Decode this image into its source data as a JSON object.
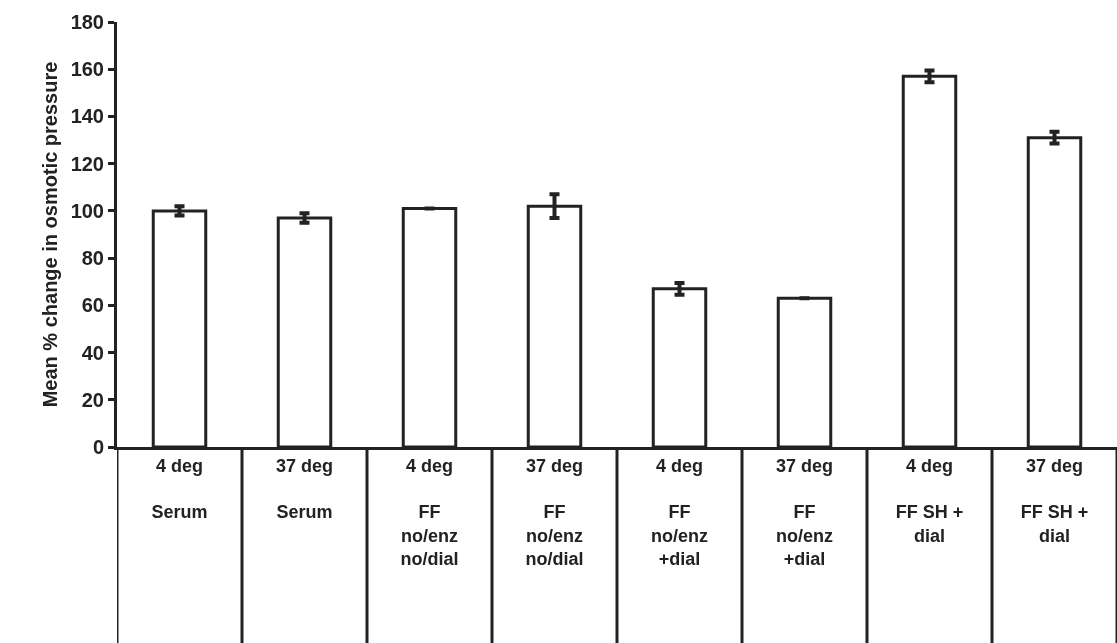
{
  "chart_data": {
    "type": "bar",
    "ylabel": "Mean % change in osmotic pressure",
    "categories": [
      "4 deg\n\nSerum",
      "37 deg\n\nSerum",
      "4 deg\n\nFF\nno/enz\nno/dial",
      "37 deg\n\nFF\nno/enz\nno/dial",
      "4 deg\n\nFF\nno/enz\n+dial",
      "37 deg\n\nFF\nno/enz\n+dial",
      "4 deg\n\nFF SH +\ndial",
      "37 deg\n\nFF SH +\ndial"
    ],
    "values": [
      100,
      97,
      101,
      102,
      67,
      63,
      157,
      131
    ],
    "errors": [
      2,
      2,
      null,
      5,
      2.5,
      null,
      2.5,
      2.5
    ],
    "color": "#ffffff",
    "ylim": [
      0,
      180
    ],
    "yticks": [
      0,
      20,
      40,
      60,
      80,
      100,
      120,
      140,
      160,
      180
    ]
  }
}
